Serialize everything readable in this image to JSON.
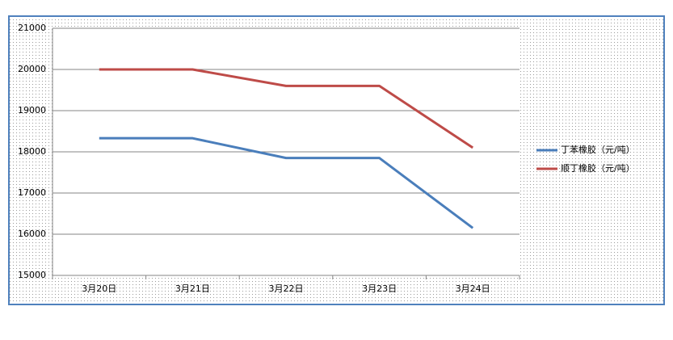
{
  "chart_data": {
    "type": "line",
    "categories": [
      "3月20日",
      "3月21日",
      "3月22日",
      "3月23日",
      "3月24日"
    ],
    "series": [
      {
        "name": "丁苯橡胶（元/吨）",
        "color": "#4a7ebb",
        "values": [
          18330,
          18330,
          17850,
          17850,
          16150
        ]
      },
      {
        "name": "顺丁橡胶（元/吨）",
        "color": "#be4b48",
        "values": [
          20000,
          20000,
          19600,
          19600,
          18100
        ]
      }
    ],
    "ylim": [
      15000,
      21000
    ],
    "yticks": [
      15000,
      16000,
      17000,
      18000,
      19000,
      20000,
      21000
    ],
    "grid": true,
    "legend": "right"
  }
}
